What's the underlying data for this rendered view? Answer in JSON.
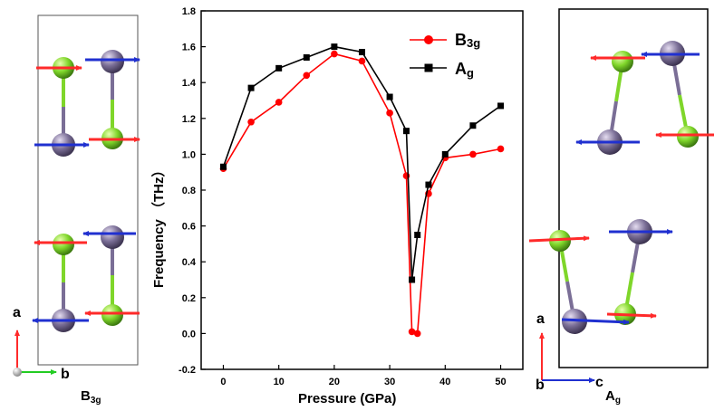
{
  "chart_data": {
    "type": "line",
    "xlabel": "Pressure (GPa)",
    "ylabel": "Frequency （THz）",
    "xlim": [
      -4,
      54
    ],
    "ylim": [
      -0.2,
      1.8
    ],
    "xticks": [
      0,
      10,
      20,
      30,
      40,
      50
    ],
    "yticks": [
      -0.2,
      0.0,
      0.2,
      0.4,
      0.6,
      0.8,
      1.0,
      1.2,
      1.4,
      1.6,
      1.8
    ],
    "grid": false,
    "legend_position": "top-right",
    "series": [
      {
        "name": "B3g",
        "name_main": "B",
        "name_sub": "3g",
        "color": "#ff0000",
        "marker": "circle",
        "x": [
          0,
          5,
          10,
          15,
          20,
          25,
          30,
          33,
          34,
          35,
          37,
          40,
          45,
          50
        ],
        "y": [
          0.92,
          1.18,
          1.29,
          1.44,
          1.56,
          1.52,
          1.23,
          0.88,
          0.01,
          0.0,
          0.78,
          0.98,
          1.0,
          1.03
        ]
      },
      {
        "name": "Ag",
        "name_main": "A",
        "name_sub": "g",
        "color": "#000000",
        "marker": "square",
        "x": [
          0,
          5,
          10,
          15,
          20,
          25,
          30,
          33,
          34,
          35,
          37,
          40,
          45,
          50
        ],
        "y": [
          0.93,
          1.37,
          1.48,
          1.54,
          1.6,
          1.57,
          1.32,
          1.13,
          0.3,
          0.55,
          0.83,
          1.0,
          1.16,
          1.27
        ]
      }
    ]
  },
  "structures": {
    "left": {
      "label_main": "B",
      "label_sub": "3g",
      "axis_a": "a",
      "axis_b": "b"
    },
    "right": {
      "label_main": "A",
      "label_sub": "g",
      "axis_a": "a",
      "axis_b": "b",
      "axis_c": "c"
    },
    "colors": {
      "atom_green": "#7fd62a",
      "atom_purple": "#7a6e96",
      "arrow_red": "#ff2a2a",
      "arrow_blue": "#2030d0"
    }
  }
}
